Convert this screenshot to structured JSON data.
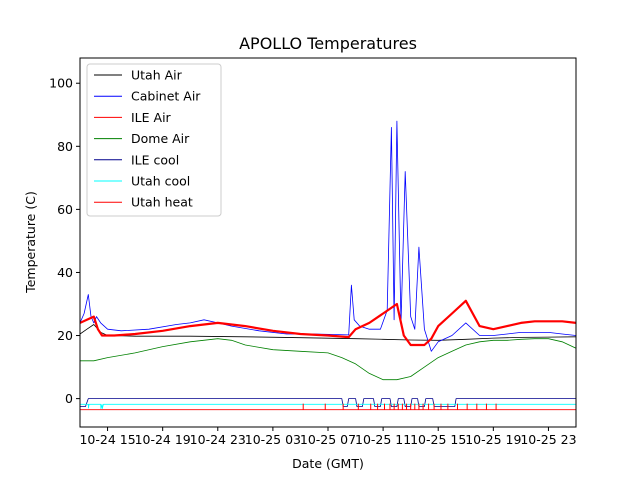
{
  "chart_data": {
    "type": "line",
    "title": "APOLLO Temperatures",
    "xlabel": "Date (GMT)",
    "ylabel": "Temperature (C)",
    "x_unit": "hours since 2024-10-24 11:00 GMT",
    "xlim": [
      0,
      36
    ],
    "ylim": [
      -9,
      108
    ],
    "grid": false,
    "legend_position": "top-left",
    "yticks": [
      0,
      20,
      40,
      60,
      80,
      100
    ],
    "xticks": [
      {
        "x": 2,
        "label": "10-24 15"
      },
      {
        "x": 6,
        "label": "10-24 19"
      },
      {
        "x": 10,
        "label": "10-24 23"
      },
      {
        "x": 14,
        "label": "10-25 03"
      },
      {
        "x": 18,
        "label": "10-25 07"
      },
      {
        "x": 22,
        "label": "10-25 11"
      },
      {
        "x": 26,
        "label": "10-25 15"
      },
      {
        "x": 30,
        "label": "10-25 19"
      },
      {
        "x": 34,
        "label": "10-25 23"
      }
    ],
    "series": [
      {
        "name": "Utah Air",
        "color": "#000000",
        "x": [
          0,
          0.5,
          1.0,
          1.5,
          2.0,
          4,
          8,
          12,
          16,
          20,
          22,
          24,
          26,
          28,
          30,
          32,
          34,
          36
        ],
        "y": [
          20.5,
          22,
          23.5,
          21,
          20,
          19.8,
          19.8,
          19.6,
          19.3,
          19.0,
          18.8,
          18.6,
          18.5,
          18.8,
          19.2,
          19.4,
          19.5,
          19.6
        ]
      },
      {
        "name": "Cabinet Air",
        "color": "#0000ff",
        "x": [
          0,
          0.3,
          0.6,
          0.8,
          1.0,
          1.2,
          1.5,
          2.0,
          3,
          5,
          7,
          8,
          9,
          10,
          11,
          13,
          15,
          17,
          19.5,
          19.7,
          19.9,
          20.3,
          21,
          21.8,
          22.3,
          22.6,
          22.8,
          23.0,
          23.3,
          23.6,
          24.0,
          24.3,
          24.6,
          25.0,
          25.5,
          26,
          27,
          28,
          29,
          30,
          31,
          32,
          33,
          34,
          35,
          36
        ],
        "y": [
          24,
          27,
          33,
          26,
          24,
          26,
          24,
          22,
          21.5,
          22,
          23.5,
          24,
          25,
          24,
          23,
          21.5,
          20.5,
          20.5,
          20.2,
          36,
          25,
          23,
          22,
          22,
          28,
          86,
          25,
          88,
          24,
          72,
          26,
          22,
          48,
          22,
          15,
          18,
          20,
          24,
          20,
          20,
          20.5,
          21,
          21,
          21,
          20.5,
          20
        ]
      },
      {
        "name": "ILE Air",
        "color": "#ff0000",
        "x": [
          0,
          0.5,
          1.0,
          1.3,
          1.6,
          2.5,
          4,
          6,
          8,
          10,
          12,
          14,
          16,
          18,
          19.5,
          20,
          21,
          22,
          23,
          23.5,
          24,
          25,
          25.5,
          26,
          27,
          28,
          29,
          30,
          31,
          32,
          33,
          34,
          35,
          36
        ],
        "y": [
          24,
          25,
          26,
          22,
          20,
          20,
          20.5,
          21.5,
          23,
          24,
          23,
          21.5,
          20.5,
          20,
          19.5,
          22,
          24,
          27,
          30,
          20,
          17,
          17,
          19,
          23,
          27,
          31,
          23,
          22,
          23,
          24,
          24.5,
          24.5,
          24.5,
          24
        ]
      },
      {
        "name": "Dome Air",
        "color": "#008000",
        "x": [
          0,
          1,
          2,
          4,
          6,
          8,
          10,
          11,
          12,
          14,
          16,
          18,
          19,
          20,
          21,
          22,
          23,
          24,
          25,
          26,
          27,
          28,
          29,
          30,
          31,
          32,
          33,
          34,
          35,
          36
        ],
        "y": [
          12,
          12,
          13,
          14.5,
          16.5,
          18,
          19,
          18.5,
          17,
          15.5,
          15,
          14.5,
          13,
          11,
          8,
          6,
          6,
          7,
          10,
          13,
          15,
          17,
          18,
          18.5,
          18.5,
          18.8,
          19,
          19,
          18,
          16
        ]
      },
      {
        "name": "ILE cool",
        "color": "#00008b",
        "x": [
          0,
          0.4,
          0.6,
          19.0,
          19.1,
          19.4,
          19.5,
          20.0,
          20.1,
          20.5,
          20.6,
          21.3,
          21.4,
          21.8,
          21.9,
          22.5,
          22.6,
          23.0,
          23.1,
          23.5,
          23.6,
          24.0,
          24.1,
          24.5,
          24.6,
          25.0,
          25.1,
          25.6,
          25.7,
          27.2,
          27.3,
          36
        ],
        "y": [
          -2.5,
          -2.5,
          0,
          0,
          -2.5,
          -2.5,
          0,
          0,
          -2.5,
          -2.5,
          0,
          0,
          -2.5,
          -2.5,
          0,
          0,
          -2.5,
          -2.5,
          0,
          0,
          -2.5,
          -2.5,
          0,
          0,
          -2.5,
          -2.5,
          0,
          0,
          -2.5,
          -2.5,
          0,
          0
        ]
      },
      {
        "name": "Utah cool",
        "color": "#00ffff",
        "x": [
          0,
          0.6,
          0.62,
          0.65,
          1.5,
          1.52,
          1.6,
          1.62,
          1.7,
          36
        ],
        "y": [
          -1.8,
          -1.8,
          -3,
          -1.8,
          -1.8,
          -3.2,
          -1.8,
          -3.2,
          -1.8,
          -1.8
        ]
      },
      {
        "name": "Utah heat",
        "color": "#ff0000",
        "x": [
          0,
          36
        ],
        "y": [
          -3.5,
          -3.5
        ],
        "spikes": [
          16.2,
          17.8,
          19.1,
          20.2,
          21.1,
          21.6,
          22.1,
          22.5,
          22.8,
          23.1,
          23.4,
          23.7,
          24.0,
          24.3,
          24.6,
          24.9,
          25.3,
          25.7,
          26.2,
          26.7,
          27.4,
          28.1,
          28.8,
          29.5,
          30.2
        ]
      }
    ]
  }
}
